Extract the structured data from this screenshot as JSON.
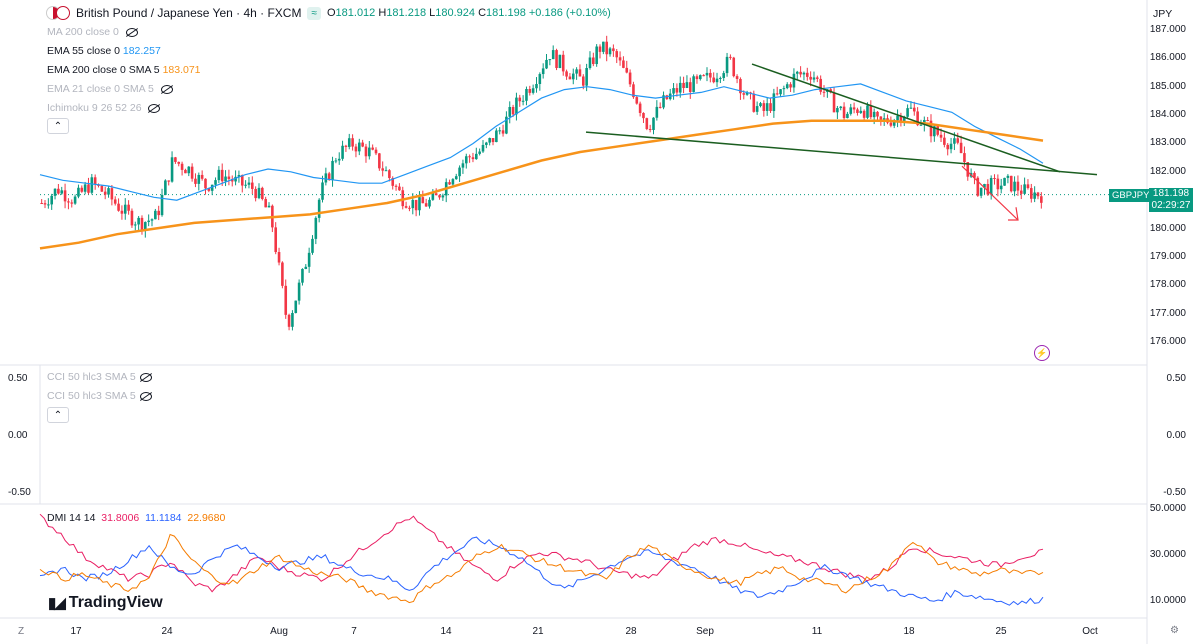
{
  "header": {
    "symbol_title": "British Pound / Japanese Yen · 4h · FXCM",
    "badge": "≈",
    "ohlc": {
      "o": "181.012",
      "h": "181.218",
      "l": "180.924",
      "c": "181.198",
      "change": "+0.186 (+0.10%)"
    },
    "currency": "JPY"
  },
  "indicators": [
    {
      "label": "MA 200 close 0",
      "value": "",
      "muted": true
    },
    {
      "label": "EMA 55 close 0",
      "value": "182.257",
      "color": "#2196f3"
    },
    {
      "label": "EMA 200 close 0 SMA 5",
      "value": "183.071",
      "color": "#f7931a"
    },
    {
      "label": "EMA 21 close 0 SMA 5",
      "value": "",
      "muted": true
    },
    {
      "label": "Ichimoku 9 26 52 26",
      "value": "",
      "muted": true
    }
  ],
  "cci_pane": {
    "labels": [
      "CCI 50 hlc3 SMA 5",
      "CCI 50 hlc3 SMA 5"
    ],
    "ticks": [
      "0.50",
      "0.00",
      "-0.50"
    ]
  },
  "dmi_pane": {
    "label": "DMI 14 14",
    "values": [
      "31.8006",
      "11.1184",
      "22.9680"
    ],
    "colors": [
      "#e91e63",
      "#2962ff",
      "#f57c00"
    ],
    "ticks": [
      "50.0000",
      "30.0000",
      "10.0000"
    ]
  },
  "price_axis": [
    "187.000",
    "186.000",
    "185.000",
    "184.000",
    "183.000",
    "182.000",
    "181.000",
    "180.000",
    "179.000",
    "178.000",
    "177.000",
    "176.000"
  ],
  "price_tag": {
    "symbol": "GBPJPY",
    "price": "181.198",
    "countdown": "02:29:27"
  },
  "x_axis": [
    "17",
    "24",
    "Aug",
    "7",
    "14",
    "21",
    "28",
    "Sep",
    "11",
    "18",
    "25",
    "Oct"
  ],
  "branding": {
    "logo": "TradingView"
  },
  "colors": {
    "up": "#089981",
    "down": "#f23645",
    "ema55": "#2196f3",
    "ema200": "#f7931a",
    "trend": "#1b5e20"
  },
  "chart_data": {
    "type": "candlestick",
    "title": "British Pound / Japanese Yen · 4h · FXCM",
    "ylim": [
      175.6,
      187.3
    ],
    "close_path": [
      180.9,
      181.4,
      181.0,
      181.6,
      181.2,
      180.6,
      180.2,
      180.4,
      182.4,
      182.1,
      181.5,
      181.9,
      181.6,
      181.4,
      180.4,
      176.6,
      178.5,
      181.2,
      182.6,
      183.0,
      182.7,
      182.0,
      181.1,
      180.8,
      181.0,
      181.9,
      182.5,
      182.8,
      183.5,
      184.4,
      185.2,
      186.2,
      185.6,
      185.2,
      186.4,
      186.1,
      185.0,
      183.6,
      184.5,
      185.0,
      185.1,
      185.4,
      185.9,
      184.6,
      184.1,
      184.7,
      185.4,
      185.5,
      184.6,
      184.0,
      184.3,
      183.7,
      183.9,
      184.2,
      183.6,
      183.2,
      182.8,
      181.4,
      181.5,
      181.6,
      181.3,
      181.2
    ],
    "ema55_path": [
      181.9,
      181.7,
      181.6,
      181.5,
      181.3,
      181.1,
      181.0,
      181.3,
      181.6,
      181.9,
      182.1,
      182.0,
      181.8,
      181.7,
      181.6,
      181.6,
      181.9,
      182.2,
      182.5,
      183.0,
      183.6,
      184.1,
      184.6,
      184.9,
      185.0,
      184.9,
      184.7,
      184.6,
      184.7,
      184.8,
      185.0,
      184.8,
      184.6,
      184.7,
      184.9,
      185.0,
      185.1,
      184.8,
      184.5,
      184.3,
      184.1,
      183.6,
      183.2,
      182.8,
      182.3
    ],
    "ema200_path": [
      179.3,
      179.5,
      179.8,
      180.0,
      180.2,
      180.3,
      180.4,
      180.5,
      180.7,
      180.9,
      181.2,
      181.6,
      182.0,
      182.4,
      182.7,
      182.9,
      183.1,
      183.3,
      183.5,
      183.7,
      183.8,
      183.8,
      183.8,
      183.7,
      183.5,
      183.3,
      183.1
    ],
    "trendlines": [
      {
        "name": "upper",
        "from": [
          "Sep 1",
          185.8
        ],
        "to": [
          "Sep 29",
          182.0
        ]
      },
      {
        "name": "lower",
        "from": [
          "Aug 24",
          183.4
        ],
        "to": [
          "Oct 1",
          181.9
        ]
      }
    ],
    "cci_range": [
      -0.5,
      0.5
    ],
    "dmi_range": [
      5,
      52
    ],
    "dmi_series": [
      {
        "name": "+DI",
        "color": "#e91e63",
        "values": [
          48,
          40,
          30,
          25,
          20,
          22,
          28,
          18,
          15,
          22,
          30,
          25,
          22,
          20,
          28,
          35,
          42,
          48,
          40,
          32,
          25,
          20,
          28,
          32,
          30,
          28,
          24,
          22,
          20,
          28,
          35,
          38,
          36,
          32,
          30,
          28,
          25,
          22,
          20,
          25,
          35,
          32,
          30,
          28,
          26,
          30,
          32
        ]
      },
      {
        "name": "-DI",
        "color": "#2962ff",
        "values": [
          20,
          25,
          20,
          22,
          28,
          35,
          25,
          22,
          30,
          35,
          30,
          25,
          28,
          30,
          25,
          22,
          20,
          15,
          25,
          32,
          38,
          35,
          30,
          22,
          15,
          20,
          25,
          30,
          32,
          28,
          25,
          20,
          15,
          12,
          15,
          20,
          25,
          22,
          18,
          15,
          12,
          10,
          14,
          12,
          10,
          9,
          11
        ]
      },
      {
        "name": "ADX",
        "color": "#f57c00",
        "values": [
          25,
          20,
          22,
          18,
          15,
          20,
          40,
          28,
          20,
          18,
          25,
          30,
          25,
          22,
          20,
          15,
          12,
          10,
          18,
          22,
          30,
          35,
          32,
          28,
          25,
          22,
          20,
          30,
          35,
          28,
          24,
          20,
          18,
          22,
          25,
          20,
          18,
          15,
          20,
          25,
          38,
          28,
          25,
          22,
          24,
          22,
          23
        ]
      }
    ]
  }
}
